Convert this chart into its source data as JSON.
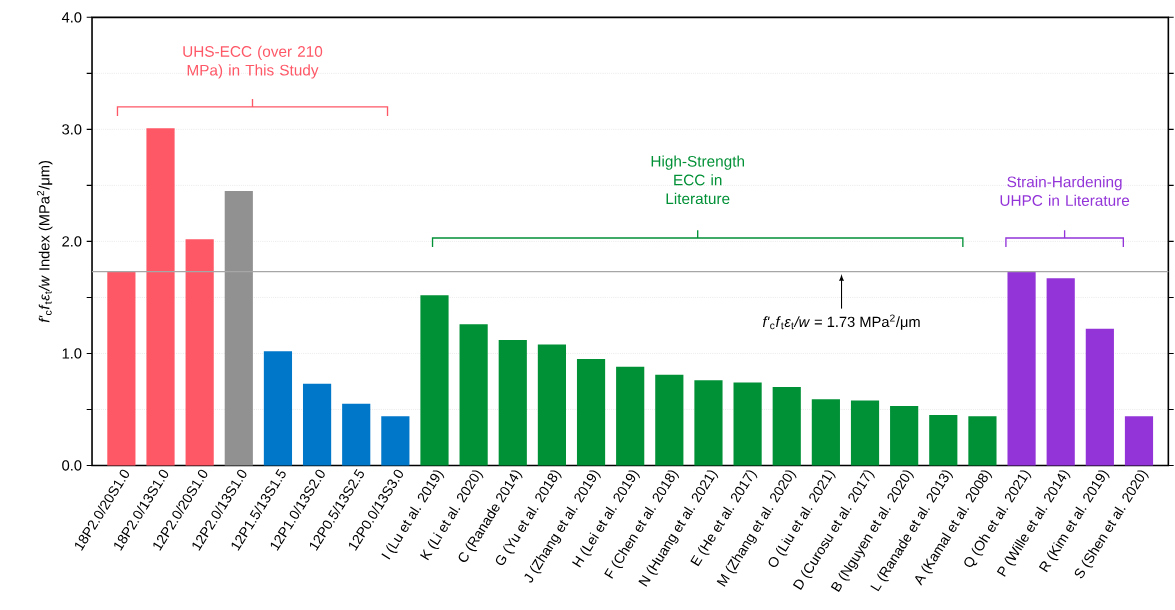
{
  "chart_data": {
    "type": "bar",
    "ylabel": "*f'*$_{c}$*f*$_{t}$*ε*$_{t}$*/w* Index (MPa$^{2}$/μm)",
    "categories": [
      "18P2.0/20S1.0",
      "18P2.0/13S1.0",
      "12P2.0/20S1.0",
      "12P2.0/13S1.0",
      "12P1.5/13S1.5",
      "12P1.0/13S2.0",
      "12P0.5/13S2.5",
      "12P0.0/13S3.0",
      "I (Lu et al. 2019)",
      "K (Li et al. 2020)",
      "C (Ranade 2014)",
      "G (Yu et al. 2018)",
      "J (Zhang et al. 2019)",
      "H (Lei et al. 2019)",
      "F (Chen et al. 2018)",
      "N (Huang et al. 2021)",
      "E (He et al. 2017)",
      "M (Zhang et al. 2020)",
      "O (Liu et al. 2021)",
      "D (Curosu et al. 2017)",
      "B (Nguyen et al. 2020)",
      "L (Ranade et al. 2013)",
      "A (Kamal et al. 2008)",
      "Q (Oh et al. 2021)",
      "P (Wille et al. 2014)",
      "R (Kim et al. 2019)",
      "S (Shen et al. 2020)"
    ],
    "values": [
      1.73,
      3.01,
      2.02,
      2.45,
      1.02,
      0.73,
      0.55,
      0.44,
      1.52,
      1.26,
      1.12,
      1.08,
      0.95,
      0.88,
      0.81,
      0.76,
      0.74,
      0.7,
      0.59,
      0.58,
      0.53,
      0.45,
      0.44,
      1.73,
      1.67,
      1.22,
      0.44
    ],
    "colors": [
      "#fe5766",
      "#fe5766",
      "#fe5766",
      "#919191",
      "#0077c8",
      "#0077c8",
      "#0077c8",
      "#0077c8",
      "#009036",
      "#009036",
      "#009036",
      "#009036",
      "#009036",
      "#009036",
      "#009036",
      "#009036",
      "#009036",
      "#009036",
      "#009036",
      "#009036",
      "#009036",
      "#009036",
      "#009036",
      "#9334d8",
      "#9334d8",
      "#9334d8",
      "#9334d8"
    ],
    "ylim": [
      0,
      4
    ],
    "yticks": [
      {
        "value": 0,
        "label": "0.0"
      },
      {
        "value": 0.5,
        "label": null
      },
      {
        "value": 1,
        "label": "1.0"
      },
      {
        "value": 1.5,
        "label": null
      },
      {
        "value": 2,
        "label": "2.0"
      },
      {
        "value": 2.5,
        "label": null
      },
      {
        "value": 3,
        "label": "3.0"
      },
      {
        "value": 3.5,
        "label": null
      },
      {
        "value": 4,
        "label": "4.0"
      }
    ],
    "grid": "y",
    "ref_lines": [
      {
        "axis": "y",
        "value": 1.73,
        "color": "#a6a6a6",
        "label": "*f'*$_{c}$*f*$_{t}$*ε*$_{t}$*/w* = 1.73 MPa$^{2}$/μm"
      }
    ],
    "annotations": [
      "UHS-ECC (over 210 MPa) in This Study",
      "High-Strength ECC in Literature",
      "Strain-Hardening UHPC in Literature"
    ]
  }
}
